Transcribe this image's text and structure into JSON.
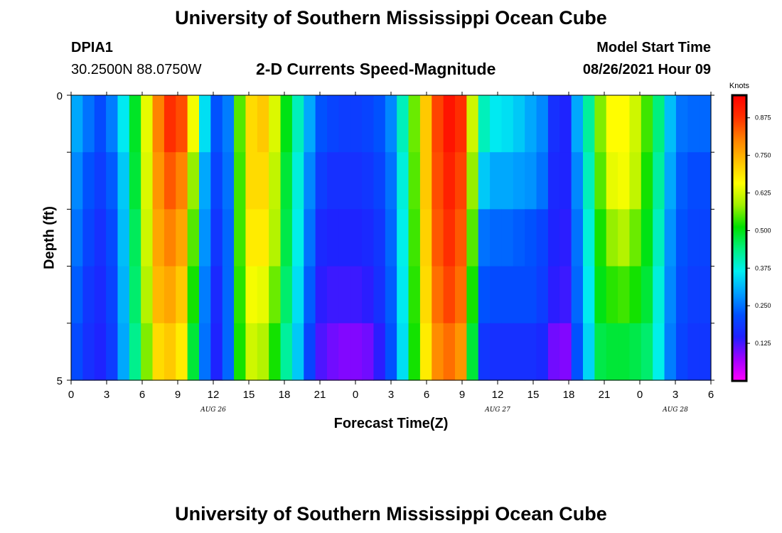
{
  "page": {
    "top_title": "University of Southern Mississippi Ocean Cube",
    "bottom_title": "University of Southern Mississippi Ocean Cube",
    "station_id": "DPIA1",
    "station_coords": "30.2500N  88.0750W",
    "model_start_label": "Model Start Time",
    "model_start_value": "08/26/2021 Hour 09"
  },
  "chart_data": {
    "type": "heatmap",
    "title": "2-D Currents Speed-Magnitude",
    "xlabel": "Forecast Time(Z)",
    "ylabel": "Depth (ft)",
    "ylim": [
      0,
      5
    ],
    "y_tick_labels": [
      "0",
      "5"
    ],
    "y_minor_ticks": 6,
    "x_tick_labels": [
      "0",
      "3",
      "6",
      "9",
      "12",
      "15",
      "18",
      "21",
      "0",
      "3",
      "6",
      "9",
      "12",
      "15",
      "18",
      "21",
      "0",
      "3",
      "6"
    ],
    "date_labels": [
      {
        "label": "AUG 26",
        "hour": 12
      },
      {
        "label": "AUG 27",
        "hour": 36
      },
      {
        "label": "AUG 28",
        "hour": 51
      }
    ],
    "hours": [
      0,
      1,
      2,
      3,
      4,
      5,
      6,
      7,
      8,
      9,
      10,
      11,
      12,
      13,
      14,
      15,
      16,
      17,
      18,
      19,
      20,
      21,
      22,
      23,
      24,
      25,
      26,
      27,
      28,
      29,
      30,
      31,
      32,
      33,
      34,
      35,
      36,
      37,
      38,
      39,
      40,
      41,
      42,
      43,
      44,
      45,
      46,
      47,
      48,
      49,
      50,
      51,
      52,
      53,
      54
    ],
    "depth_rows": [
      "0-1 ft",
      "1-2 ft",
      "2-3 ft",
      "3-4 ft",
      "4-5 ft"
    ],
    "speed_knots": [
      [
        0.3,
        0.25,
        0.21,
        0.26,
        0.36,
        0.49,
        0.64,
        0.8,
        0.88,
        0.85,
        0.65,
        0.35,
        0.22,
        0.26,
        0.55,
        0.7,
        0.72,
        0.63,
        0.5,
        0.4,
        0.3,
        0.22,
        0.2,
        0.19,
        0.19,
        0.2,
        0.22,
        0.27,
        0.4,
        0.56,
        0.72,
        0.86,
        0.92,
        0.88,
        0.62,
        0.4,
        0.36,
        0.35,
        0.33,
        0.3,
        0.27,
        0.17,
        0.15,
        0.3,
        0.42,
        0.57,
        0.66,
        0.66,
        0.62,
        0.54,
        0.44,
        0.32,
        0.25,
        0.24,
        0.24
      ],
      [
        0.27,
        0.22,
        0.19,
        0.23,
        0.33,
        0.48,
        0.63,
        0.78,
        0.84,
        0.8,
        0.58,
        0.3,
        0.2,
        0.25,
        0.54,
        0.7,
        0.7,
        0.61,
        0.48,
        0.38,
        0.27,
        0.19,
        0.17,
        0.17,
        0.17,
        0.18,
        0.2,
        0.25,
        0.38,
        0.55,
        0.72,
        0.85,
        0.9,
        0.86,
        0.58,
        0.33,
        0.3,
        0.3,
        0.29,
        0.28,
        0.25,
        0.16,
        0.15,
        0.27,
        0.4,
        0.55,
        0.64,
        0.65,
        0.61,
        0.52,
        0.42,
        0.3,
        0.23,
        0.21,
        0.21
      ],
      [
        0.25,
        0.2,
        0.17,
        0.21,
        0.32,
        0.46,
        0.62,
        0.76,
        0.8,
        0.76,
        0.55,
        0.28,
        0.18,
        0.24,
        0.54,
        0.68,
        0.68,
        0.6,
        0.47,
        0.37,
        0.25,
        0.16,
        0.15,
        0.15,
        0.15,
        0.16,
        0.18,
        0.24,
        0.37,
        0.54,
        0.71,
        0.84,
        0.88,
        0.84,
        0.55,
        0.25,
        0.24,
        0.24,
        0.23,
        0.22,
        0.2,
        0.15,
        0.14,
        0.25,
        0.38,
        0.52,
        0.58,
        0.6,
        0.56,
        0.5,
        0.4,
        0.28,
        0.22,
        0.2,
        0.2
      ],
      [
        0.23,
        0.18,
        0.16,
        0.2,
        0.31,
        0.45,
        0.6,
        0.74,
        0.76,
        0.72,
        0.52,
        0.26,
        0.16,
        0.24,
        0.53,
        0.65,
        0.64,
        0.56,
        0.45,
        0.35,
        0.23,
        0.14,
        0.13,
        0.13,
        0.13,
        0.14,
        0.17,
        0.23,
        0.36,
        0.53,
        0.7,
        0.82,
        0.86,
        0.82,
        0.52,
        0.22,
        0.21,
        0.21,
        0.21,
        0.21,
        0.19,
        0.14,
        0.13,
        0.24,
        0.36,
        0.5,
        0.53,
        0.54,
        0.52,
        0.48,
        0.38,
        0.27,
        0.21,
        0.19,
        0.19
      ],
      [
        0.21,
        0.17,
        0.15,
        0.19,
        0.3,
        0.43,
        0.57,
        0.7,
        0.72,
        0.68,
        0.48,
        0.25,
        0.15,
        0.24,
        0.52,
        0.62,
        0.6,
        0.52,
        0.42,
        0.33,
        0.2,
        0.12,
        0.1,
        0.09,
        0.09,
        0.1,
        0.14,
        0.22,
        0.35,
        0.52,
        0.68,
        0.79,
        0.82,
        0.78,
        0.48,
        0.18,
        0.17,
        0.17,
        0.17,
        0.17,
        0.16,
        0.1,
        0.09,
        0.22,
        0.34,
        0.47,
        0.48,
        0.48,
        0.47,
        0.45,
        0.37,
        0.26,
        0.2,
        0.18,
        0.18
      ]
    ],
    "colorbar": {
      "unit": "Knots",
      "min": 0.0,
      "max": 0.95,
      "tick_labels": [
        "0.125",
        "0.250",
        "0.375",
        "0.500",
        "0.625",
        "0.750",
        "0.875"
      ],
      "tick_values": [
        0.125,
        0.25,
        0.375,
        0.5,
        0.625,
        0.75,
        0.875
      ],
      "colors": [
        "#ff00ff",
        "#a000ff",
        "#2020ff",
        "#0050ff",
        "#00a0ff",
        "#00f0f0",
        "#00f080",
        "#00e000",
        "#a0f000",
        "#ffff00",
        "#ffc000",
        "#ff8000",
        "#ff3000",
        "#ff0000"
      ]
    }
  }
}
